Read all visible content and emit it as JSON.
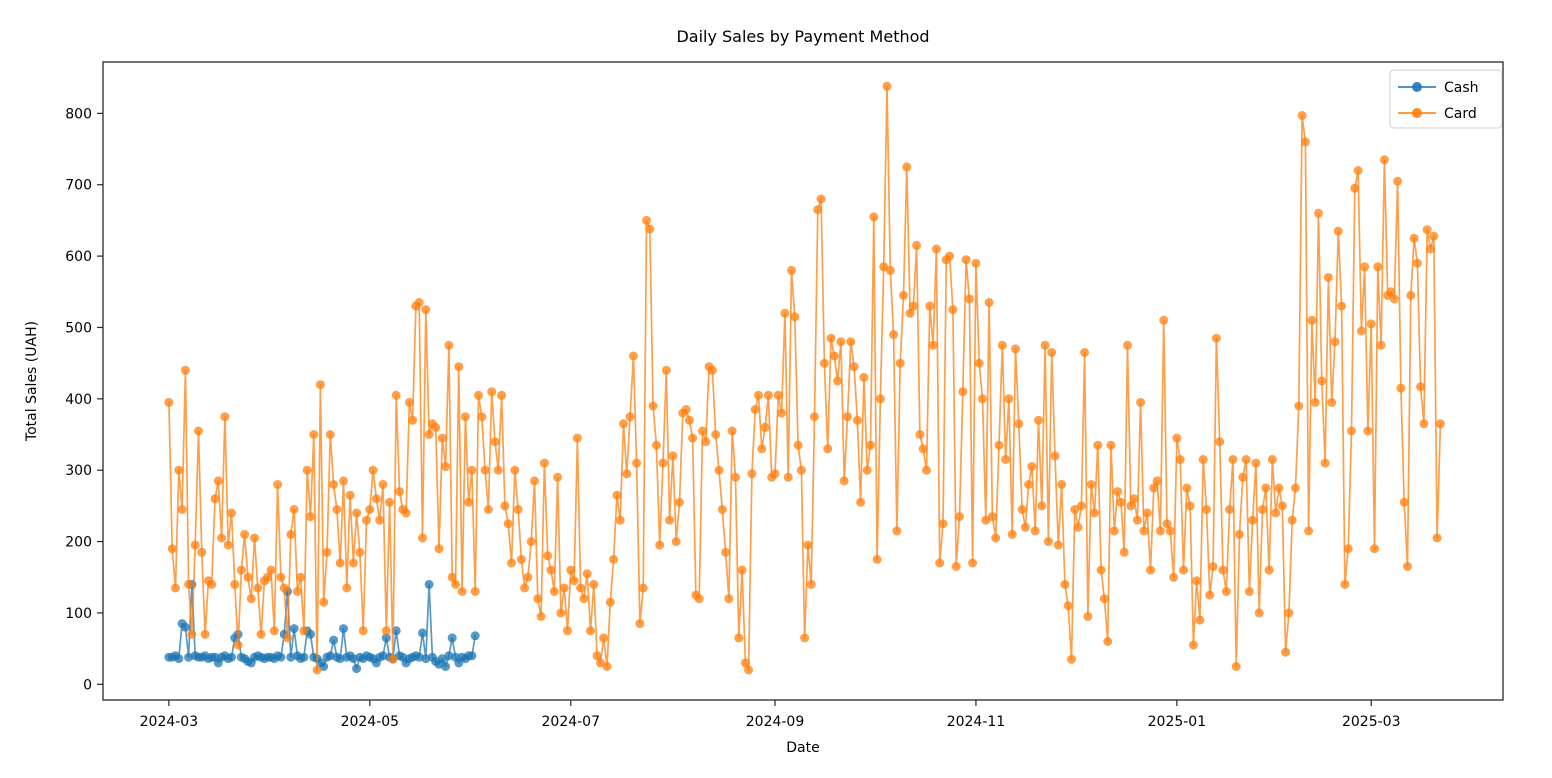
{
  "figure": {
    "background": "#ffffff",
    "frame_color": "#262626"
  },
  "chart_data": {
    "type": "line",
    "title": "Daily Sales by Payment Method",
    "xlabel": "Date",
    "ylabel": "Total Sales (UAH)",
    "grid": false,
    "legend": {
      "position": "upper right",
      "entries": [
        "Cash",
        "Card"
      ]
    },
    "ylim": [
      -22,
      872
    ],
    "xlim": [
      "2024-02-10",
      "2025-04-10"
    ],
    "yticks": [
      0,
      100,
      200,
      300,
      400,
      500,
      600,
      700,
      800
    ],
    "xticks": [
      {
        "label": "2024-03",
        "date": "2024-03-01"
      },
      {
        "label": "2024-05",
        "date": "2024-05-01"
      },
      {
        "label": "2024-07",
        "date": "2024-07-01"
      },
      {
        "label": "2024-09",
        "date": "2024-09-01"
      },
      {
        "label": "2024-11",
        "date": "2024-11-01"
      },
      {
        "label": "2025-01",
        "date": "2025-01-01"
      },
      {
        "label": "2025-03",
        "date": "2025-03-01"
      }
    ],
    "series": [
      {
        "name": "Cash",
        "color": "#1f77b4",
        "opacity": 0.75,
        "marker": "circle",
        "start": "2024-03-01",
        "cadence_days": 1,
        "values": [
          38,
          38,
          40,
          36,
          85,
          80,
          38,
          140,
          40,
          38,
          38,
          40,
          36,
          38,
          38,
          30,
          38,
          40,
          36,
          38,
          65,
          70,
          38,
          36,
          32,
          30,
          38,
          40,
          38,
          36,
          38,
          38,
          36,
          40,
          38,
          70,
          130,
          38,
          78,
          40,
          36,
          38,
          75,
          70,
          38,
          36,
          30,
          25,
          38,
          40,
          62,
          38,
          36,
          78,
          38,
          40,
          36,
          22,
          38,
          36,
          40,
          38,
          36,
          30,
          38,
          40,
          65,
          38,
          36,
          75,
          40,
          38,
          30,
          36,
          38,
          40,
          38,
          72,
          36,
          140,
          38,
          32,
          28,
          36,
          25,
          40,
          65,
          38,
          30,
          38,
          36,
          40,
          40,
          68
        ]
      },
      {
        "name": "Card",
        "color": "#ff7f0e",
        "opacity": 0.75,
        "marker": "circle",
        "start": "2024-03-01",
        "cadence_days": 1,
        "values": [
          395,
          190,
          135,
          300,
          245,
          440,
          140,
          70,
          195,
          355,
          185,
          70,
          145,
          140,
          260,
          285,
          205,
          375,
          195,
          240,
          140,
          55,
          160,
          210,
          150,
          120,
          205,
          135,
          70,
          145,
          150,
          160,
          75,
          280,
          150,
          135,
          65,
          210,
          245,
          130,
          150,
          75,
          300,
          235,
          350,
          20,
          420,
          115,
          185,
          350,
          280,
          245,
          170,
          285,
          135,
          265,
          170,
          240,
          185,
          75,
          230,
          245,
          300,
          260,
          230,
          280,
          75,
          255,
          35,
          405,
          270,
          245,
          240,
          395,
          370,
          530,
          535,
          205,
          525,
          350,
          365,
          360,
          190,
          345,
          305,
          475,
          150,
          140,
          445,
          130,
          375,
          255,
          300,
          130,
          405,
          375,
          300,
          245,
          410,
          340,
          300,
          405,
          250,
          225,
          170,
          300,
          245,
          175,
          135,
          150,
          200,
          285,
          120,
          95,
          310,
          180,
          160,
          130,
          290,
          100,
          135,
          75,
          160,
          145,
          345,
          135,
          120,
          155,
          75,
          140,
          40,
          30,
          65,
          25,
          115,
          175,
          265,
          230,
          365,
          295,
          375,
          460,
          310,
          85,
          135,
          650,
          638,
          390,
          335,
          195,
          310,
          440,
          230,
          320,
          200,
          255,
          380,
          385,
          370,
          345,
          125,
          120,
          355,
          340,
          445,
          440,
          350,
          300,
          245,
          185,
          120,
          355,
          290,
          65,
          160,
          30,
          20,
          295,
          385,
          405,
          330,
          360,
          405,
          290,
          295,
          405,
          380,
          520,
          290,
          580,
          515,
          335,
          300,
          65,
          195,
          140,
          375,
          665,
          680,
          450,
          330,
          485,
          460,
          425,
          480,
          285,
          375,
          480,
          445,
          370,
          255,
          430,
          300,
          335,
          655,
          175,
          400,
          585,
          838,
          580,
          490,
          215,
          450,
          545,
          725,
          520,
          530,
          615,
          350,
          330,
          300,
          530,
          475,
          610,
          170,
          225,
          595,
          600,
          525,
          165,
          235,
          410,
          595,
          540,
          170,
          590,
          450,
          400,
          230,
          535,
          235,
          205,
          335,
          475,
          315,
          400,
          210,
          470,
          365,
          245,
          220,
          280,
          305,
          215,
          370,
          250,
          475,
          200,
          465,
          320,
          195,
          280,
          140,
          110,
          35,
          245,
          220,
          250,
          465,
          95,
          280,
          240,
          335,
          160,
          120,
          60,
          335,
          215,
          270,
          255,
          185,
          475,
          250,
          260,
          230,
          395,
          215,
          240,
          160,
          275,
          285,
          215,
          510,
          225,
          215,
          150,
          345,
          315,
          160,
          275,
          250,
          55,
          145,
          90,
          315,
          245,
          125,
          165,
          485,
          340,
          160,
          130,
          245,
          315,
          25,
          210,
          290,
          315,
          130,
          230,
          310,
          100,
          245,
          275,
          160,
          315,
          240,
          275,
          250,
          45,
          100,
          230,
          275,
          390,
          797,
          760,
          215,
          510,
          395,
          660,
          425,
          310,
          570,
          395,
          480,
          635,
          530,
          140,
          190,
          355,
          695,
          720,
          495,
          585,
          355,
          505,
          190,
          585,
          475,
          735,
          545,
          550,
          540,
          705,
          415,
          255,
          165,
          545,
          625,
          590,
          417,
          365,
          637,
          610,
          628,
          205,
          365
        ]
      }
    ]
  }
}
